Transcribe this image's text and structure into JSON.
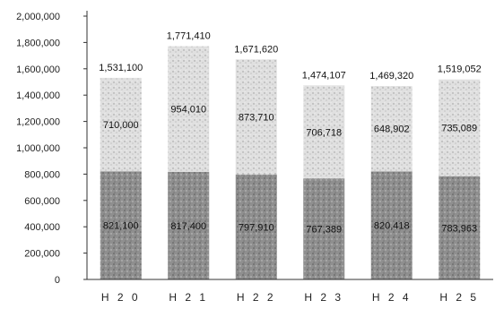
{
  "chart_data": {
    "type": "bar",
    "stacked": true,
    "categories": [
      "H 2 0",
      "H 2 1",
      "H 2 2",
      "H 2 3",
      "H 2 4",
      "H 2 5"
    ],
    "series": [
      {
        "values": [
          821100,
          817400,
          797910,
          767389,
          820418,
          783963
        ],
        "labels": [
          "821,100",
          "817,400",
          "797,910",
          "767,389",
          "820,418",
          "783,963"
        ],
        "color": "#8c8c8c"
      },
      {
        "values": [
          710000,
          954010,
          873710,
          706718,
          648902,
          735089
        ],
        "labels": [
          "710,000",
          "954,010",
          "873,710",
          "706,718",
          "648,902",
          "735,089"
        ],
        "color": "#d6d6d6"
      }
    ],
    "totals": [
      1531100,
      1771410,
      1671620,
      1474107,
      1469320,
      1519052
    ],
    "total_labels": [
      "1,531,100",
      "1,771,410",
      "1,671,620",
      "1,474,107",
      "1,469,320",
      "1,519,052"
    ],
    "ylim": [
      0,
      2000000
    ],
    "yticks": [
      0,
      200000,
      400000,
      600000,
      800000,
      1000000,
      1200000,
      1400000,
      1600000,
      1800000,
      2000000
    ],
    "ytick_labels": [
      "0",
      "200,000",
      "400,000",
      "600,000",
      "800,000",
      "1,000,000",
      "1,200,000",
      "1,400,000",
      "1,600,000",
      "1,800,000",
      "2,000,000"
    ],
    "grid": false,
    "legend": "none"
  }
}
